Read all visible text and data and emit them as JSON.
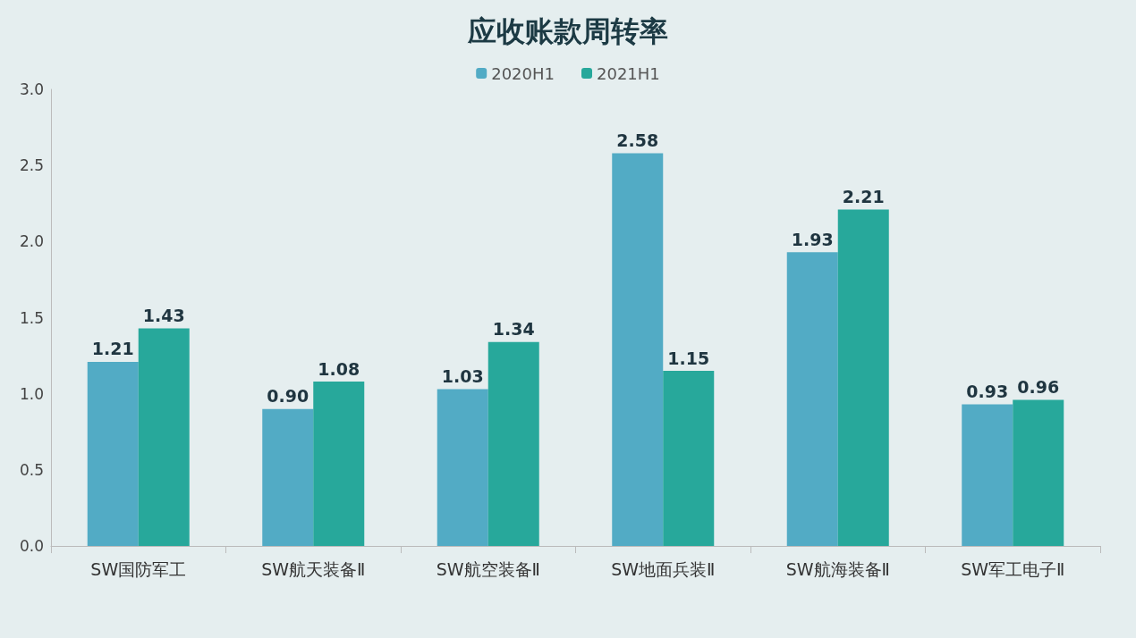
{
  "chart_data": {
    "type": "bar",
    "title": "应收账款周转率",
    "categories": [
      "SW国防军工",
      "SW航天装备Ⅱ",
      "SW航空装备Ⅱ",
      "SW地面兵装Ⅱ",
      "SW航海装备Ⅱ",
      "SW军工电子Ⅱ"
    ],
    "series": [
      {
        "name": "2020H1",
        "color": "#52abc5",
        "values": [
          1.21,
          0.9,
          1.03,
          2.58,
          1.93,
          0.93
        ],
        "value_labels": [
          "1.21",
          "0.90",
          "1.03",
          "2.58",
          "1.93",
          "0.93"
        ]
      },
      {
        "name": "2021H1",
        "color": "#27a89b",
        "values": [
          1.43,
          1.08,
          1.34,
          1.15,
          2.21,
          0.96
        ],
        "value_labels": [
          "1.43",
          "1.08",
          "1.34",
          "1.15",
          "2.21",
          "0.96"
        ]
      }
    ],
    "ylim": [
      0,
      3
    ],
    "yticks": [
      {
        "value": 0,
        "label": "0.0"
      },
      {
        "value": 0.5,
        "label": "0.5"
      },
      {
        "value": 1,
        "label": "1.0"
      },
      {
        "value": 1.5,
        "label": "1.5"
      },
      {
        "value": 2,
        "label": "2.0"
      },
      {
        "value": 2.5,
        "label": "2.5"
      },
      {
        "value": 3,
        "label": "3.0"
      }
    ],
    "grid": false,
    "legend": "top"
  }
}
